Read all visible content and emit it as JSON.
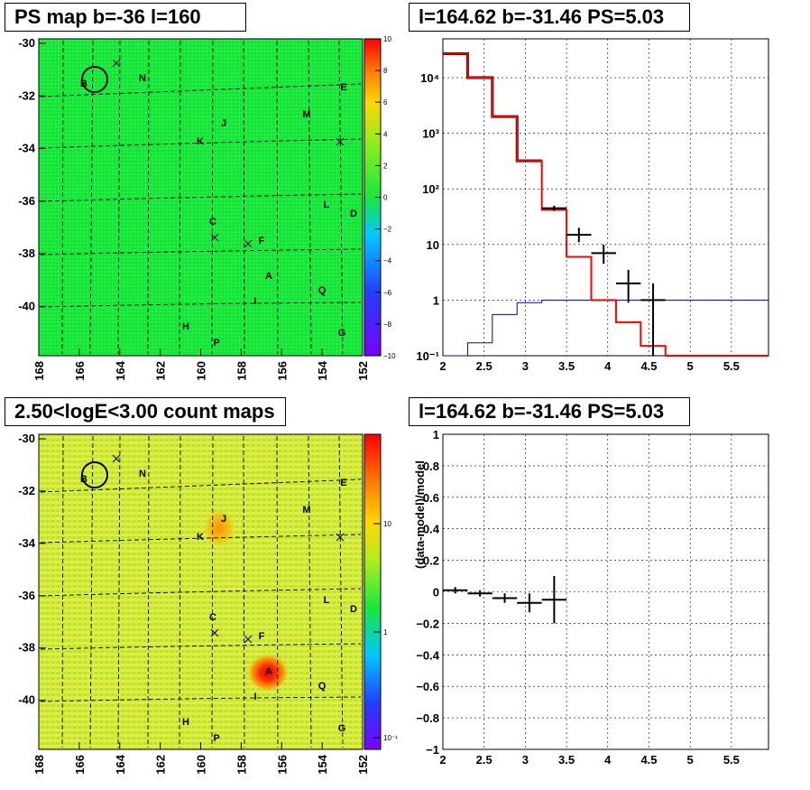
{
  "panels": {
    "tl_title": "PS map b=-36 l=160",
    "tr_title": "l=164.62 b=-31.46 PS=5.03",
    "bl_title": "2.50<logE<3.00 count maps",
    "br_title": "l=164.62 b=-31.46 PS=5.03"
  },
  "maps": {
    "x_ticks": [
      "168",
      "166",
      "164",
      "162",
      "160",
      "158",
      "156",
      "154",
      "152"
    ],
    "y_ticks": [
      "-30",
      "-32",
      "-34",
      "-36",
      "-38",
      "-40"
    ],
    "ps_colorbar_ticks": [
      "10",
      "8",
      "6",
      "4",
      "2",
      "0",
      "−2",
      "−4",
      "−6",
      "−8",
      "−10"
    ],
    "count_colorbar_ticks": [
      "10",
      "1",
      "10⁻¹"
    ],
    "source_labels": [
      "B",
      "N",
      "E",
      "M",
      "J",
      "K",
      "L",
      "D",
      "C",
      "F",
      "A",
      "Q",
      "I",
      "H",
      "G",
      "P"
    ]
  },
  "colors": {
    "map_green": "#19e83a",
    "spectrum_data": "#000000",
    "spectrum_model": "#ff0000",
    "spectrum_bg": "#0000cc"
  },
  "chart_data": [
    {
      "type": "line",
      "title": "l=164.62 b=-31.46 PS=5.03",
      "xlabel": "",
      "ylabel": "",
      "y_scale": "log",
      "xlim": [
        2,
        5.95
      ],
      "ylim": [
        0.1,
        50000
      ],
      "x_tick_labels": [
        "2",
        "2.5",
        "3",
        "3.5",
        "4",
        "4.5",
        "5",
        "5.5"
      ],
      "y_tick_labels": [
        "10⁻¹",
        "1",
        "10",
        "10²",
        "10³",
        "10⁴"
      ],
      "bin_edges": [
        2.0,
        2.3,
        2.6,
        2.9,
        3.2,
        3.5,
        3.8,
        4.1,
        4.4,
        4.7,
        5.0,
        5.3,
        5.6,
        5.95
      ],
      "series": [
        {
          "style": "red-step",
          "values": [
            27000,
            10000,
            2000,
            320,
            42,
            6,
            1,
            0.4,
            0.15,
            0.1,
            0.1,
            0.1,
            0.1
          ]
        },
        {
          "style": "blue-step",
          "values": [
            0.1,
            0.17,
            0.55,
            0.9,
            1.0,
            1.0,
            1.0,
            1.0,
            1.0,
            1.0,
            1.0,
            1.0,
            1.0
          ]
        },
        {
          "style": "black-errorbars",
          "points": [
            {
              "x": 3.35,
              "y": 45,
              "xerr": 0.15,
              "ylo": 40,
              "yhi": 50
            },
            {
              "x": 3.65,
              "y": 15,
              "xerr": 0.15,
              "ylo": 11,
              "yhi": 20
            },
            {
              "x": 3.95,
              "y": 7,
              "xerr": 0.15,
              "ylo": 4.5,
              "yhi": 10
            },
            {
              "x": 4.25,
              "y": 2,
              "xerr": 0.15,
              "ylo": 0.9,
              "yhi": 3.5
            },
            {
              "x": 4.55,
              "y": 1,
              "xerr": 0.15,
              "ylo": 0.1,
              "yhi": 2
            }
          ]
        }
      ]
    },
    {
      "type": "scatter",
      "title": "l=164.62 b=-31.46 PS=5.03",
      "xlabel": "",
      "ylabel": "(data-model)/model",
      "xlim": [
        2,
        5.95
      ],
      "ylim": [
        -1,
        1
      ],
      "x_tick_labels": [
        "2",
        "2.5",
        "3",
        "3.5",
        "4",
        "4.5",
        "5",
        "5.5"
      ],
      "y_tick_labels": [
        "1",
        "0.8",
        "0.6",
        "0.4",
        "0.2",
        "0",
        "−0.2",
        "−0.4",
        "−0.6",
        "−0.8",
        "−1"
      ],
      "points": [
        {
          "x": 2.15,
          "y": 0.01,
          "xerr": 0.15,
          "yerr": 0.02
        },
        {
          "x": 2.45,
          "y": -0.01,
          "xerr": 0.15,
          "yerr": 0.02
        },
        {
          "x": 2.75,
          "y": -0.04,
          "xerr": 0.15,
          "yerr": 0.03
        },
        {
          "x": 3.05,
          "y": -0.07,
          "xerr": 0.15,
          "yerr": 0.06
        },
        {
          "x": 3.35,
          "y": -0.05,
          "xerr": 0.15,
          "yerr": 0.15
        }
      ]
    }
  ]
}
